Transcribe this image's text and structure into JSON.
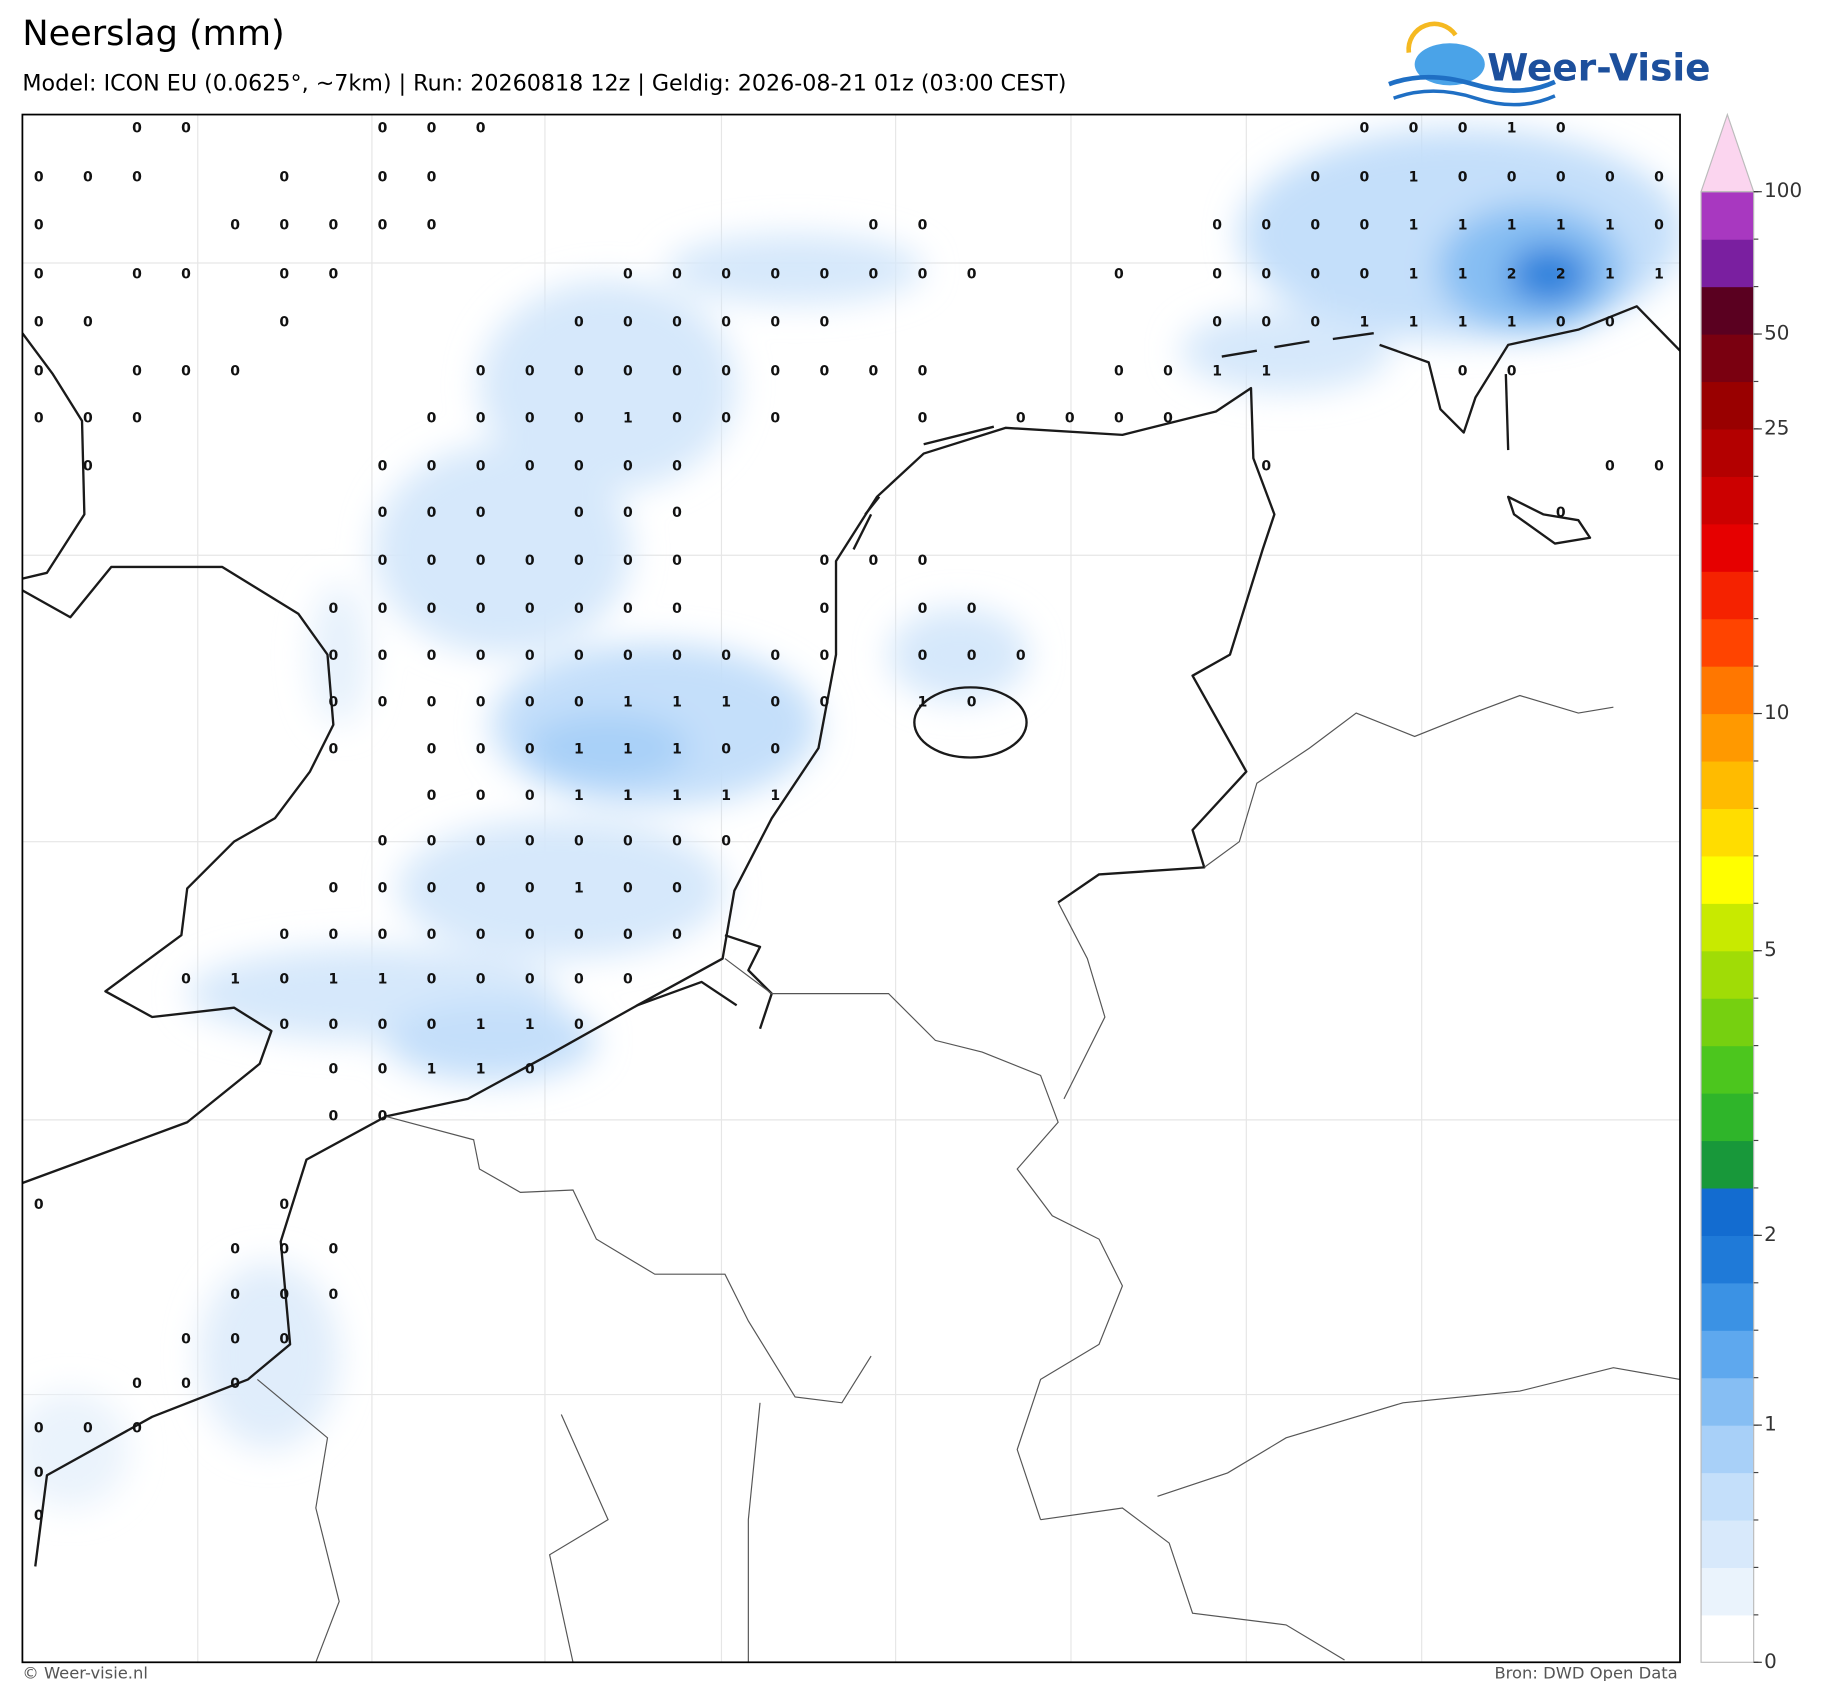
{
  "header": {
    "title": "Neerslag (mm)",
    "subtitle": "Model: ICON EU (0.0625°, ~7km)  |  Run: 20260818 12z  |  Geldig: 2026-08-21 01z (03:00 CEST)",
    "logo": "Weer-Visie"
  },
  "footer": {
    "left": "© Weer-visie.nl",
    "right": "Bron: DWD Open Data"
  },
  "colorbar": {
    "ticks": [
      0,
      1,
      2,
      5,
      10,
      25,
      50,
      100
    ],
    "levels": [
      0,
      0.1,
      0.2,
      0.4,
      0.6,
      1,
      1.2,
      1.4,
      1.7,
      2,
      2.5,
      3,
      3.5,
      4,
      4.5,
      5,
      6,
      7,
      8,
      9,
      10,
      12,
      14,
      16,
      18,
      20,
      25,
      35,
      50,
      60,
      75,
      100
    ],
    "colors": [
      "#ffffff",
      "#eaf3fc",
      "#d8e9fb",
      "#c4dffa",
      "#a8d0f8",
      "#86bef3",
      "#5ea8ee",
      "#3b92e4",
      "#1f7ad8",
      "#136cd0",
      "#18983a",
      "#2fb52a",
      "#4cc61e",
      "#76d010",
      "#a0dc06",
      "#c8ea00",
      "#ffff00",
      "#ffdd00",
      "#ffbb00",
      "#ff9900",
      "#ff7700",
      "#ff4400",
      "#f52200",
      "#e60000",
      "#cc0000",
      "#b30000",
      "#990000",
      "#7a0010",
      "#5a0020",
      "#7a1fa0",
      "#a838c0",
      "#e070d8"
    ],
    "extend_color": "#fbd5ef"
  },
  "grid_labels": {
    "rows": [
      [
        null,
        null,
        0,
        0,
        null,
        null,
        null,
        0,
        0,
        0,
        null,
        null,
        null,
        null,
        null,
        null,
        null,
        null,
        null,
        null,
        null,
        null,
        null,
        null,
        null,
        null,
        null,
        0,
        0,
        0,
        1,
        0
      ],
      [
        0,
        0,
        0,
        null,
        null,
        0,
        null,
        0,
        0,
        null,
        null,
        null,
        null,
        null,
        null,
        null,
        null,
        null,
        null,
        null,
        null,
        null,
        null,
        null,
        null,
        null,
        0,
        0,
        1,
        0,
        0,
        0,
        0,
        0
      ],
      [
        0,
        null,
        null,
        null,
        0,
        0,
        0,
        0,
        0,
        null,
        null,
        null,
        null,
        null,
        null,
        null,
        null,
        0,
        0,
        null,
        null,
        null,
        null,
        null,
        0,
        0,
        0,
        0,
        1,
        1,
        1,
        1,
        1,
        0
      ],
      [
        0,
        null,
        0,
        0,
        null,
        0,
        0,
        null,
        null,
        null,
        null,
        null,
        0,
        0,
        0,
        0,
        0,
        0,
        0,
        0,
        null,
        null,
        0,
        null,
        0,
        0,
        0,
        0,
        1,
        1,
        2,
        2,
        1,
        1
      ],
      [
        0,
        0,
        null,
        null,
        null,
        0,
        null,
        null,
        null,
        null,
        null,
        0,
        0,
        0,
        0,
        0,
        0,
        null,
        null,
        null,
        null,
        null,
        null,
        null,
        0,
        0,
        0,
        1,
        1,
        1,
        1,
        0,
        0
      ],
      [
        0,
        null,
        0,
        0,
        0,
        null,
        null,
        null,
        null,
        0,
        0,
        0,
        0,
        0,
        0,
        0,
        0,
        0,
        0,
        null,
        null,
        null,
        0,
        0,
        1,
        1,
        null,
        null,
        null,
        0,
        0
      ],
      [
        0,
        0,
        0,
        null,
        null,
        null,
        null,
        null,
        0,
        0,
        0,
        0,
        1,
        0,
        0,
        0,
        null,
        null,
        0,
        null,
        0,
        0,
        0,
        0
      ],
      [
        null,
        0,
        null,
        null,
        null,
        null,
        null,
        0,
        0,
        0,
        0,
        0,
        0,
        0,
        null,
        null,
        null,
        null,
        null,
        null,
        null,
        null,
        null,
        null,
        null,
        0,
        null,
        null,
        null,
        null,
        null,
        null,
        0,
        0
      ],
      [
        null,
        null,
        null,
        null,
        null,
        null,
        null,
        0,
        0,
        0,
        null,
        0,
        0,
        0,
        null,
        null,
        null,
        null,
        null,
        null,
        null,
        null,
        null,
        null,
        null,
        null,
        null,
        null,
        null,
        null,
        null,
        0
      ],
      [
        null,
        null,
        null,
        null,
        null,
        null,
        null,
        0,
        0,
        0,
        0,
        0,
        0,
        0,
        null,
        null,
        0,
        0,
        0
      ],
      [
        null,
        null,
        null,
        null,
        null,
        null,
        0,
        0,
        0,
        0,
        0,
        0,
        0,
        0,
        null,
        null,
        0,
        null,
        0,
        0
      ],
      [
        null,
        null,
        null,
        null,
        null,
        null,
        0,
        0,
        0,
        0,
        0,
        0,
        0,
        0,
        0,
        0,
        0,
        null,
        0,
        0,
        0
      ],
      [
        null,
        null,
        null,
        null,
        null,
        null,
        0,
        0,
        0,
        0,
        0,
        0,
        1,
        1,
        1,
        0,
        0,
        null,
        1,
        0
      ],
      [
        null,
        null,
        null,
        null,
        null,
        null,
        0,
        null,
        0,
        0,
        0,
        1,
        1,
        1,
        0,
        0
      ],
      [
        null,
        null,
        null,
        null,
        null,
        null,
        null,
        null,
        0,
        0,
        0,
        1,
        1,
        1,
        1,
        1
      ],
      [
        null,
        null,
        null,
        null,
        null,
        null,
        null,
        0,
        0,
        0,
        0,
        0,
        0,
        0,
        0
      ],
      [
        null,
        null,
        null,
        null,
        null,
        null,
        0,
        0,
        0,
        0,
        0,
        1,
        0,
        0
      ],
      [
        null,
        null,
        null,
        null,
        null,
        0,
        0,
        0,
        0,
        0,
        0,
        0,
        0,
        0
      ],
      [
        null,
        null,
        null,
        0,
        1,
        0,
        1,
        1,
        0,
        0,
        0,
        0,
        0
      ],
      [
        null,
        null,
        null,
        null,
        null,
        0,
        0,
        0,
        0,
        1,
        1,
        0
      ],
      [
        null,
        null,
        null,
        null,
        null,
        null,
        0,
        0,
        1,
        1,
        0
      ],
      [
        null,
        null,
        null,
        null,
        null,
        null,
        0,
        0
      ],
      [],
      [
        0,
        null,
        null,
        null,
        null,
        0
      ],
      [
        null,
        null,
        null,
        null,
        0,
        0,
        0
      ],
      [
        null,
        null,
        null,
        null,
        0,
        0,
        0
      ],
      [
        null,
        null,
        null,
        0,
        0,
        0
      ],
      [
        null,
        null,
        0,
        0,
        0
      ],
      [
        0,
        0,
        0
      ],
      [
        0
      ],
      [
        0
      ]
    ]
  }
}
